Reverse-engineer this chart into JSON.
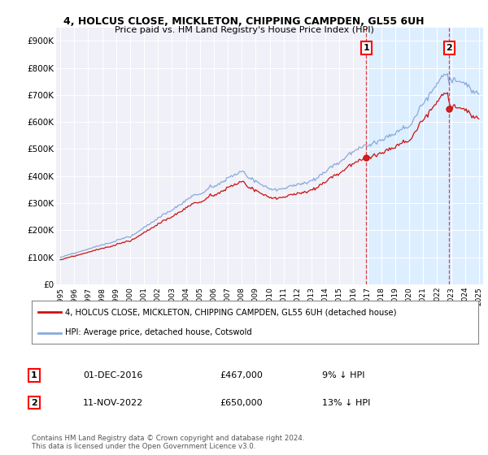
{
  "title_line1": "4, HOLCUS CLOSE, MICKLETON, CHIPPING CAMPDEN, GL55 6UH",
  "title_line2": "Price paid vs. HM Land Registry's House Price Index (HPI)",
  "background_color": "#ffffff",
  "plot_bg_color": "#f0f0f8",
  "grid_color": "#ffffff",
  "hpi_color": "#88aadd",
  "price_color": "#cc1111",
  "sale1_date_num": 2016.92,
  "sale1_price": 467000,
  "sale2_date_num": 2022.87,
  "sale2_price": 650000,
  "ylim_min": 0,
  "ylim_max": 950000,
  "xlim_min": 1994.7,
  "xlim_max": 2025.3,
  "legend_label1": "4, HOLCUS CLOSE, MICKLETON, CHIPPING CAMPDEN, GL55 6UH (detached house)",
  "legend_label2": "HPI: Average price, detached house, Cotswold",
  "annotation1_label": "1",
  "annotation1_date": "01-DEC-2016",
  "annotation1_price": "£467,000",
  "annotation1_hpi": "9% ↓ HPI",
  "annotation2_label": "2",
  "annotation2_date": "11-NOV-2022",
  "annotation2_price": "£650,000",
  "annotation2_hpi": "13% ↓ HPI",
  "footer": "Contains HM Land Registry data © Crown copyright and database right 2024.\nThis data is licensed under the Open Government Licence v3.0.",
  "ytick_labels": [
    "£0",
    "£100K",
    "£200K",
    "£300K",
    "£400K",
    "£500K",
    "£600K",
    "£700K",
    "£800K",
    "£900K"
  ],
  "ytick_values": [
    0,
    100000,
    200000,
    300000,
    400000,
    500000,
    600000,
    700000,
    800000,
    900000
  ],
  "span_color": "#ddeeff",
  "vline_color": "#dd4444"
}
